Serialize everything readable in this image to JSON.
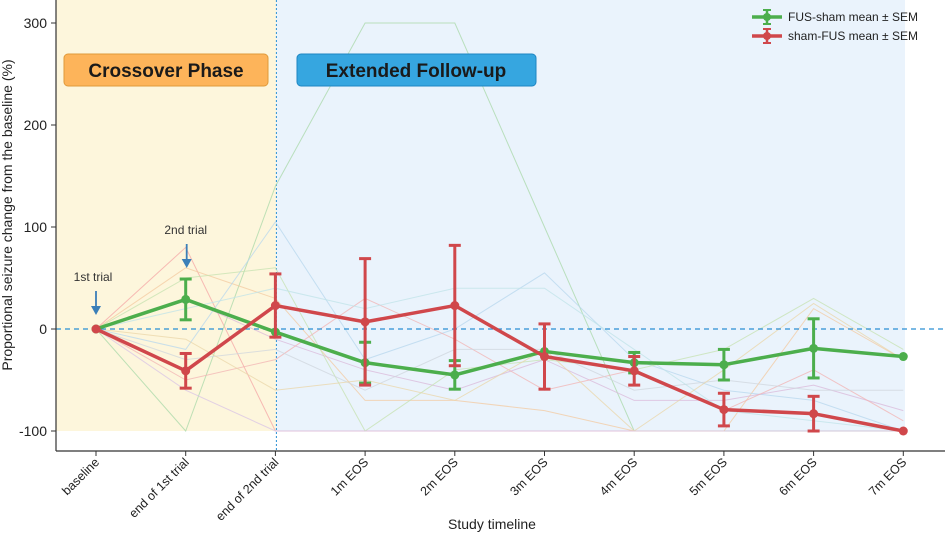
{
  "chart_data": {
    "type": "line",
    "xlabel": "Study timeline",
    "ylabel": "Proportional seizure change from the baseline (%)",
    "ylim": [
      -120,
      320
    ],
    "yticks": [
      -100,
      0,
      100,
      200,
      300
    ],
    "categories": [
      "baseline",
      "end of 1st trial",
      "end of 2nd trial",
      "1m EOS",
      "2m EOS",
      "3m EOS",
      "4m EOS",
      "5m EOS",
      "6m EOS",
      "7m EOS"
    ],
    "phases": [
      {
        "label": "Crossover Phase",
        "from": 0,
        "to": 2,
        "color": "#fdf6dc",
        "label_bg": "#fdb45a",
        "label_border": "#e09a3a"
      },
      {
        "label": "Extended Follow-up",
        "from": 2,
        "to": 9,
        "color": "#eaf3fc",
        "label_bg": "#36a6e0",
        "label_border": "#1f86c2"
      }
    ],
    "zero_line_color": "#2a8fd4",
    "series": [
      {
        "name": "FUS-sham mean ± SEM",
        "color": "#4cae4c",
        "values": [
          0,
          29,
          -3,
          -33,
          -45,
          -22,
          -33,
          -35,
          -19,
          -27
        ],
        "sem": [
          0,
          20,
          0,
          20,
          14,
          0,
          10,
          15,
          29,
          0
        ]
      },
      {
        "name": "sham-FUS mean ± SEM",
        "color": "#d0474b",
        "values": [
          0,
          -41,
          23,
          7,
          23,
          -27,
          -41,
          -79,
          -83,
          -100
        ],
        "sem": [
          0,
          17,
          31,
          62,
          59,
          32,
          14,
          16,
          17,
          0
        ]
      }
    ],
    "annotations": [
      {
        "text": "1st trial",
        "x_index": 0
      },
      {
        "text": "2nd trial",
        "x_index": 1
      }
    ],
    "legend": "top-right",
    "grid": false
  }
}
